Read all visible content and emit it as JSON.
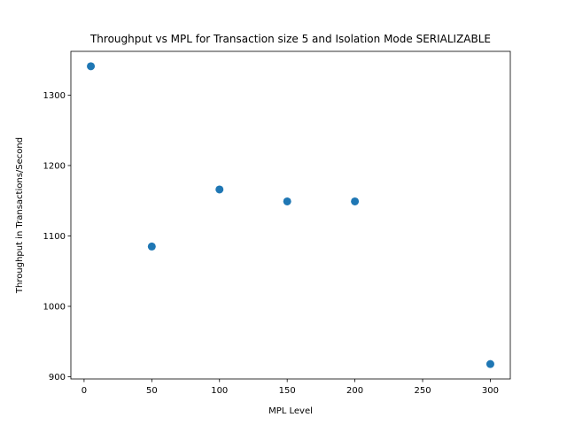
{
  "chart_data": {
    "type": "scatter",
    "title": "Throughput vs MPL for Transaction size 5 and Isolation Mode SERIALIZABLE",
    "xlabel": "MPL Level",
    "ylabel": "Throughput in Transactions/Second",
    "x": [
      5,
      50,
      100,
      150,
      200,
      300
    ],
    "y": [
      1341,
      1085,
      1166,
      1149,
      1149,
      918
    ],
    "xlim": [
      -9.75,
      314.75
    ],
    "ylim": [
      896.85,
      1362.15
    ],
    "xticks": [
      0,
      50,
      100,
      150,
      200,
      250,
      300
    ],
    "yticks": [
      900,
      1000,
      1100,
      1200,
      1300
    ],
    "grid": false,
    "colors": {
      "marker": "#1f77b4",
      "axes": "#000000",
      "background": "#ffffff"
    }
  }
}
